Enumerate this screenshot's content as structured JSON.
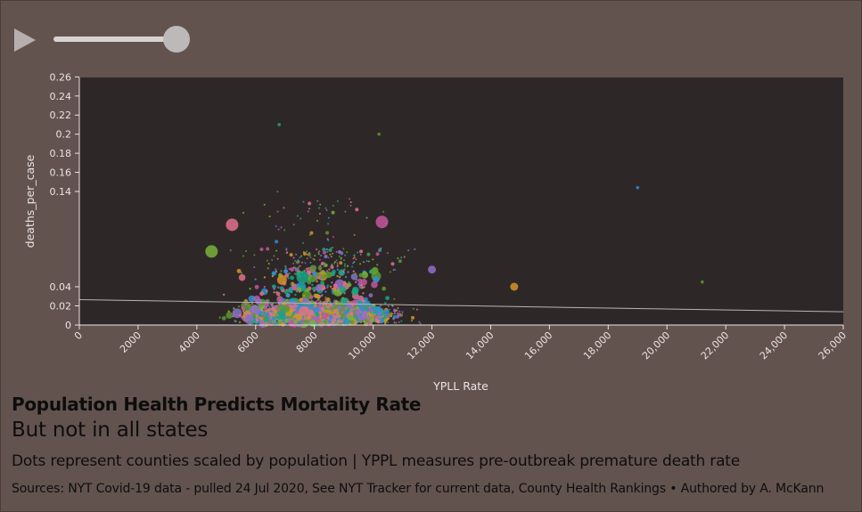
{
  "controls": {
    "play_icon": "play-icon",
    "slider_value": 1.0
  },
  "header": {
    "title": "Population Health Predicts Mortality Rate",
    "subtitle": "But not in all states",
    "description": "Dots represent counties scaled by population | YPPL measures pre-outbreak premature death rate",
    "sources": "Sources: NYT Covid-19 data - pulled 24 Jul 2020, See NYT Tracker for current data, County Health Rankings • Authored by A. McKann"
  },
  "colors": {
    "page_background": "#63534f",
    "plot_background": "#2e2728",
    "trend_line": "#b9b4b3",
    "dot_palette": [
      "#17a584",
      "#5a9a2e",
      "#c2579e",
      "#8f6fc8",
      "#d69428",
      "#2e8fcf",
      "#e0728d",
      "#78b33a"
    ]
  },
  "chart_data": {
    "type": "scatter",
    "xlabel": "YPLL Rate",
    "ylabel": "deaths_per_case",
    "xlim": [
      0,
      26000
    ],
    "ylim": [
      0,
      0.26
    ],
    "x_ticks": [
      0,
      2000,
      4000,
      6000,
      8000,
      10000,
      12000,
      14000,
      16000,
      18000,
      20000,
      22000,
      24000,
      26000
    ],
    "x_tick_labels": [
      "0",
      "2000",
      "4000",
      "6000",
      "8000",
      "10,000",
      "12,000",
      "14,000",
      "16,000",
      "18,000",
      "20,000",
      "22,000",
      "24,000",
      "26,000"
    ],
    "y_ticks": [
      0,
      0.02,
      0.04,
      0.14,
      0.16,
      0.18,
      0.2,
      0.22,
      0.24,
      0.26
    ],
    "y_tick_labels": [
      "0",
      "0.02",
      "0.04",
      "0.14",
      "0.16",
      "0.18",
      "0.2",
      "0.22",
      "0.24",
      "0.26"
    ],
    "y_scale": "non-linear (compressed between 0.04 and 0.14)",
    "grid": false,
    "trend_line": [
      [
        0,
        0.0265
      ],
      [
        26000,
        0.0138
      ]
    ],
    "highlighted_points": [
      {
        "x": 6800,
        "y": 0.21,
        "size": "small"
      },
      {
        "x": 10200,
        "y": 0.2,
        "size": "small"
      },
      {
        "x": 10300,
        "y": 0.108,
        "size": "large"
      },
      {
        "x": 12000,
        "y": 0.058,
        "size": "medium"
      },
      {
        "x": 14800,
        "y": 0.04,
        "size": "medium"
      },
      {
        "x": 19000,
        "y": 0.144,
        "size": "small"
      },
      {
        "x": 5200,
        "y": 0.105,
        "size": "large"
      },
      {
        "x": 4500,
        "y": 0.077,
        "size": "large"
      },
      {
        "x": 7600,
        "y": 0.05,
        "size": "large"
      },
      {
        "x": 21200,
        "y": 0.045,
        "size": "small"
      }
    ],
    "cloud_summary": "Several thousand county dots, densest between YPLL 4000 and 13000 with deaths_per_case mostly 0 to 0.05; dot size scales with county population."
  }
}
